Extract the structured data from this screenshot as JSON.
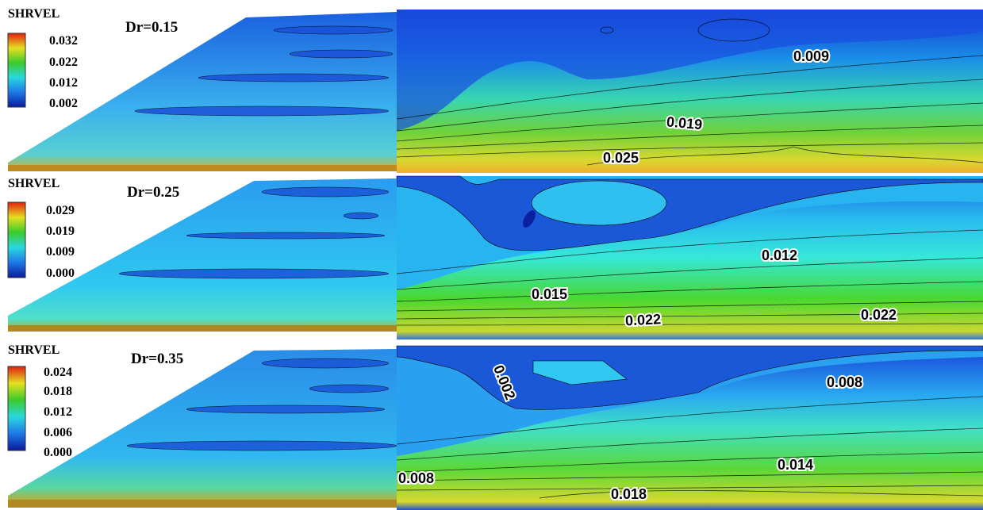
{
  "panels": [
    {
      "legend": {
        "title": "SHRVEL",
        "ticks": [
          "0.032",
          "0.022",
          "0.012",
          "0.002"
        ]
      },
      "label": "Dr=0.15",
      "contour_labels": [
        "0.009",
        "0.019",
        "0.025"
      ]
    },
    {
      "legend": {
        "title": "SHRVEL",
        "ticks": [
          "0.029",
          "0.019",
          "0.009",
          "0.000"
        ]
      },
      "label": "Dr=0.25",
      "contour_labels": [
        "0.012",
        "0.015",
        "0.022",
        "0.022"
      ]
    },
    {
      "legend": {
        "title": "SHRVEL",
        "ticks": [
          "0.024",
          "0.018",
          "0.012",
          "0.006",
          "0.000"
        ]
      },
      "label": "Dr=0.35",
      "contour_labels": [
        "0.002",
        "0.008",
        "0.014",
        "0.008",
        "0.018"
      ]
    }
  ]
}
